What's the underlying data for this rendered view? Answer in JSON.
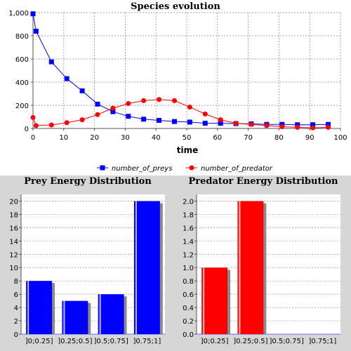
{
  "chart_data": [
    {
      "type": "line",
      "title": "Species evolution",
      "xlabel": "time",
      "ylabel": "",
      "xlim": [
        0,
        100
      ],
      "ylim": [
        0,
        1000
      ],
      "x_ticks": [
        "0",
        "10",
        "20",
        "30",
        "40",
        "50",
        "60",
        "70",
        "80",
        "90",
        "100"
      ],
      "y_ticks": [
        "0",
        "200",
        "400",
        "600",
        "800",
        "1,000"
      ],
      "grid": true,
      "legend_placement": "bottom",
      "series": [
        {
          "name": "number_of_preys",
          "color": "#0000ff",
          "marker": "square",
          "x": [
            0,
            1,
            6,
            11,
            16,
            21,
            26,
            31,
            36,
            41,
            46,
            51,
            56,
            61,
            66,
            71,
            76,
            81,
            86,
            91,
            96
          ],
          "y": [
            990,
            840,
            575,
            430,
            325,
            210,
            145,
            105,
            80,
            70,
            60,
            55,
            45,
            45,
            42,
            40,
            35,
            35,
            32,
            32,
            35
          ],
          "marker_x": [
            0,
            1,
            6,
            11,
            16,
            21,
            26,
            31,
            36,
            41,
            46,
            51,
            56,
            61,
            66,
            71,
            76,
            81,
            86,
            91,
            96
          ]
        },
        {
          "name": "number_of_predator",
          "color": "#ff0000",
          "marker": "circle",
          "x": [
            0,
            1,
            6,
            11,
            16,
            21,
            26,
            31,
            36,
            41,
            46,
            51,
            56,
            61,
            66,
            71,
            76,
            81,
            86,
            91,
            96
          ],
          "y": [
            95,
            25,
            30,
            50,
            75,
            120,
            175,
            215,
            240,
            250,
            240,
            185,
            125,
            75,
            45,
            35,
            25,
            15,
            10,
            5,
            10
          ],
          "marker_x": [
            0,
            1,
            6,
            11,
            16,
            21,
            26,
            31,
            36,
            41,
            46,
            51,
            56,
            61,
            66,
            71,
            76,
            81,
            86,
            91,
            96
          ]
        }
      ]
    },
    {
      "type": "bar",
      "title": "Prey Energy Distribution",
      "xlabel": "",
      "ylabel": "",
      "categories": [
        "]0;0.25]",
        "]0.25;0.5]",
        "]0.5;0.75]",
        "]0.75;1]"
      ],
      "values": [
        8,
        5,
        6,
        20
      ],
      "ylim": [
        0,
        21
      ],
      "y_ticks": [
        "0",
        "2",
        "4",
        "6",
        "8",
        "10",
        "12",
        "14",
        "16",
        "18",
        "20"
      ],
      "color": "#0000ff",
      "grid": true
    },
    {
      "type": "bar",
      "title": "Predator Energy Distribution",
      "xlabel": "",
      "ylabel": "",
      "categories": [
        "]0;0.25]",
        "]0.25;0.5]",
        "]0.5;0.75]",
        "]0.75;1]"
      ],
      "values": [
        1,
        2,
        0,
        0
      ],
      "ylim": [
        0,
        2.1
      ],
      "y_ticks": [
        "0.0",
        "0.2",
        "0.4",
        "0.6",
        "0.8",
        "1.0",
        "1.2",
        "1.4",
        "1.6",
        "1.8",
        "2.0"
      ],
      "color": "#ff0000",
      "grid": true
    }
  ]
}
